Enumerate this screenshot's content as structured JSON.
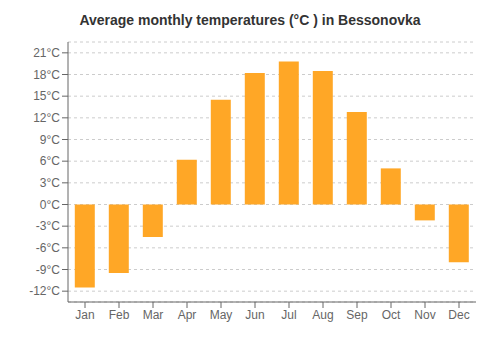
{
  "chart_data": {
    "type": "bar",
    "title": "Average monthly temperatures (°C ) in Bessonovka",
    "categories": [
      "Jan",
      "Feb",
      "Mar",
      "Apr",
      "May",
      "Jun",
      "Jul",
      "Aug",
      "Sep",
      "Oct",
      "Nov",
      "Dec"
    ],
    "values": [
      -11.5,
      -9.5,
      -4.5,
      6.2,
      14.5,
      18.2,
      19.8,
      18.5,
      12.8,
      5.0,
      -2.2,
      -8.0
    ],
    "color": "#FFA726",
    "ylim": [
      -13.5,
      22.5
    ],
    "yticks": [
      {
        "value": -12,
        "label": "-12°C"
      },
      {
        "value": -9,
        "label": "-9°C"
      },
      {
        "value": -6,
        "label": "-6°C"
      },
      {
        "value": -3,
        "label": "-3°C"
      },
      {
        "value": 0,
        "label": "0°C"
      },
      {
        "value": 3,
        "label": "3°C"
      },
      {
        "value": 6,
        "label": "6°C"
      },
      {
        "value": 9,
        "label": "9°C"
      },
      {
        "value": 12,
        "label": "12°C"
      },
      {
        "value": 15,
        "label": "15°C"
      },
      {
        "value": 18,
        "label": "18°C"
      },
      {
        "value": 21,
        "label": "21°C"
      }
    ],
    "grid": true
  }
}
